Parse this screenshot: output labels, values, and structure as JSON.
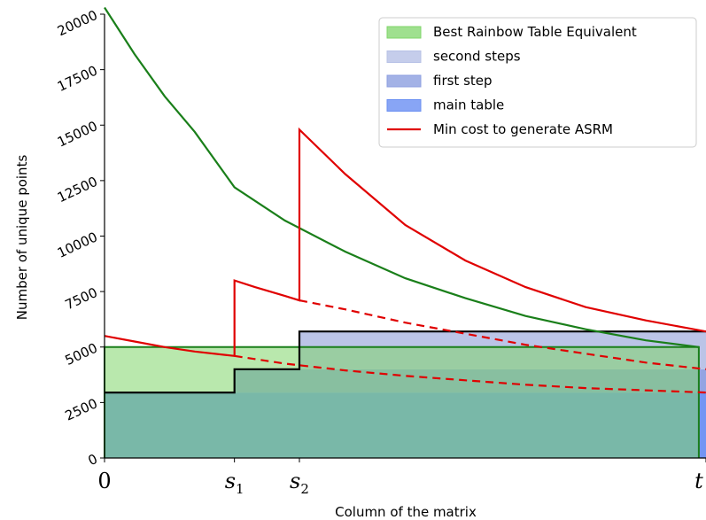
{
  "chart_data": {
    "type": "area",
    "xlabel": "Column of the matrix",
    "ylabel": "Number of unique points",
    "ylim": [
      0,
      20000
    ],
    "xlim": [
      0,
      1
    ],
    "x_ticks": [
      {
        "x": 0.0,
        "label": "0",
        "sub": ""
      },
      {
        "x": 0.216,
        "label": "s",
        "sub": "1"
      },
      {
        "x": 0.324,
        "label": "s",
        "sub": "2"
      },
      {
        "x": 1.0,
        "label": "t",
        "sub": ""
      }
    ],
    "y_ticks": [
      0,
      2500,
      5000,
      7500,
      10000,
      12500,
      15000,
      17500,
      20000
    ],
    "legend_position": "top-right",
    "colors": {
      "best_fill": "#7fd66a",
      "second_fill": "#b7c1e6",
      "first_fill": "#8c9fe0",
      "main_fill": "#6a8ff2",
      "min_cost": "#e00000",
      "decay_curve": "#1a7f1a",
      "outline": "#000000"
    },
    "series": [
      {
        "name": "Best Rainbow Table Equivalent",
        "kind": "area",
        "points": [
          [
            0,
            5000
          ],
          [
            0.988,
            5000
          ]
        ]
      },
      {
        "name": "second steps",
        "kind": "area",
        "points": [
          [
            0.324,
            5700
          ],
          [
            1.0,
            5700
          ]
        ],
        "base": 4000
      },
      {
        "name": "first step",
        "kind": "area",
        "points": [
          [
            0.216,
            4000
          ],
          [
            1.0,
            4000
          ]
        ],
        "base": 2950
      },
      {
        "name": "main table",
        "kind": "area",
        "points": [
          [
            0,
            2950
          ],
          [
            1.0,
            2950
          ]
        ]
      },
      {
        "name": "Min cost to generate ASRM",
        "kind": "line",
        "segments": [
          {
            "style": "solid",
            "points": [
              [
                0,
                5500
              ],
              [
                0.05,
                5250
              ],
              [
                0.1,
                5000
              ],
              [
                0.15,
                4800
              ],
              [
                0.216,
                4600
              ],
              [
                0.216,
                8000
              ],
              [
                0.25,
                7700
              ],
              [
                0.3,
                7300
              ],
              [
                0.324,
                7100
              ],
              [
                0.324,
                14800
              ],
              [
                0.4,
                12800
              ],
              [
                0.5,
                10500
              ],
              [
                0.6,
                8900
              ],
              [
                0.7,
                7700
              ],
              [
                0.8,
                6800
              ],
              [
                0.9,
                6200
              ],
              [
                1.0,
                5700
              ]
            ]
          },
          {
            "style": "dashed",
            "points": [
              [
                0.324,
                7100
              ],
              [
                0.4,
                6700
              ],
              [
                0.5,
                6100
              ],
              [
                0.6,
                5600
              ],
              [
                0.7,
                5100
              ],
              [
                0.8,
                4700
              ],
              [
                0.9,
                4300
              ],
              [
                1.0,
                4000
              ]
            ]
          },
          {
            "style": "dashed",
            "points": [
              [
                0.216,
                4600
              ],
              [
                0.3,
                4250
              ],
              [
                0.4,
                3950
              ],
              [
                0.5,
                3700
              ],
              [
                0.6,
                3500
              ],
              [
                0.7,
                3300
              ],
              [
                0.8,
                3150
              ],
              [
                0.9,
                3050
              ],
              [
                1.0,
                2950
              ]
            ]
          }
        ]
      },
      {
        "name": "",
        "kind": "curve",
        "points": [
          [
            0,
            20300
          ],
          [
            0.05,
            18200
          ],
          [
            0.1,
            16300
          ],
          [
            0.15,
            14700
          ],
          [
            0.216,
            12200
          ],
          [
            0.3,
            10700
          ],
          [
            0.4,
            9300
          ],
          [
            0.5,
            8100
          ],
          [
            0.6,
            7200
          ],
          [
            0.7,
            6400
          ],
          [
            0.8,
            5800
          ],
          [
            0.9,
            5300
          ],
          [
            0.988,
            5000
          ]
        ]
      }
    ]
  }
}
